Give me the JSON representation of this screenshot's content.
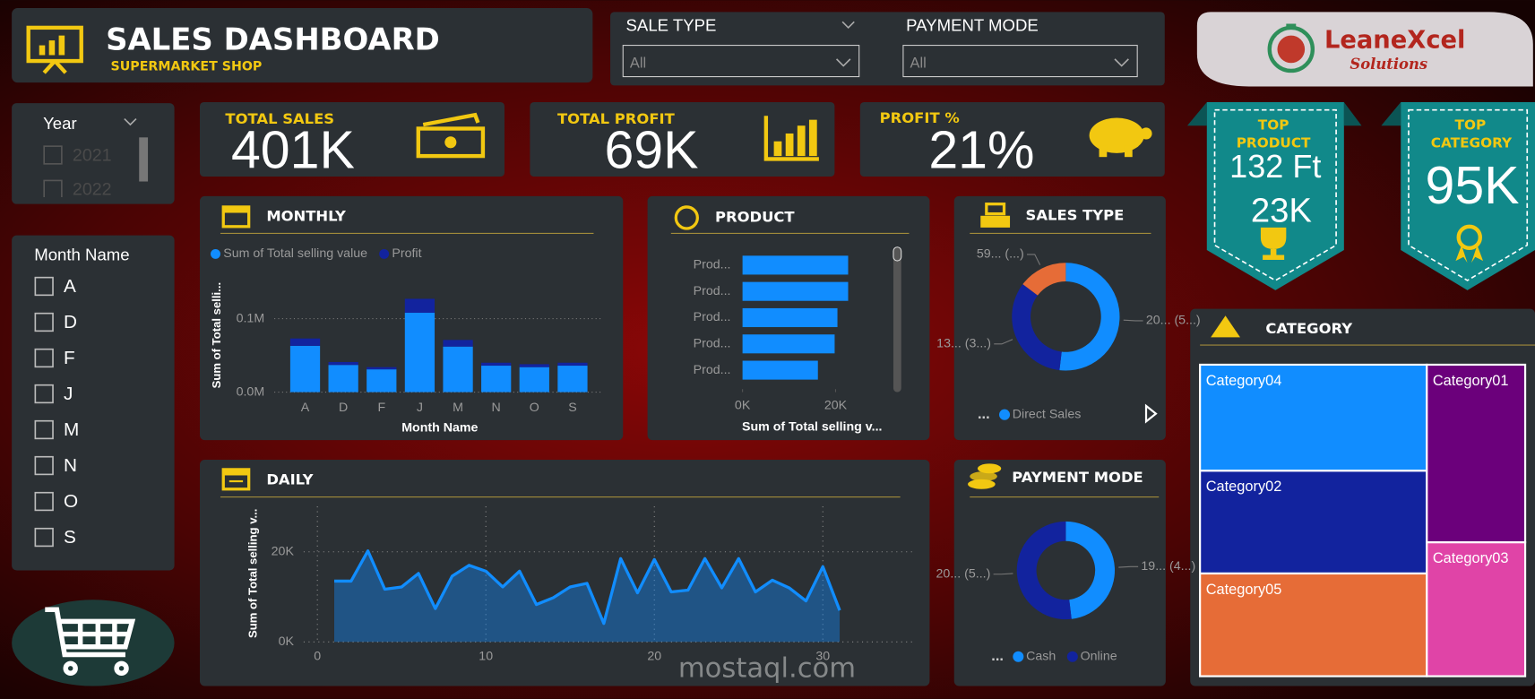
{
  "header": {
    "title": "SALES DASHBOARD",
    "subtitle": "SUPERMARKET SHOP"
  },
  "filters": [
    {
      "label": "SALE TYPE",
      "value": "All"
    },
    {
      "label": "PAYMENT MODE",
      "value": "All"
    }
  ],
  "logo": {
    "name": "LeaneXcel",
    "tagline": "Solutions"
  },
  "year_slicer": {
    "title": "Year",
    "items": [
      "2021",
      "2022"
    ]
  },
  "month_slicer": {
    "title": "Month Name",
    "items": [
      "A",
      "D",
      "F",
      "J",
      "M",
      "N",
      "O",
      "S"
    ]
  },
  "kpis": [
    {
      "label": "TOTAL SALES",
      "value": "401K"
    },
    {
      "label": "TOTAL PROFIT",
      "value": "69K"
    },
    {
      "label": "PROFIT %",
      "value": "21%"
    }
  ],
  "top_cards": [
    {
      "label_lines": [
        "TOP",
        "PRODUCT"
      ],
      "name": "132 Ft",
      "value": "23K"
    },
    {
      "label_lines": [
        "TOP",
        "CATEGORY"
      ],
      "value": "95K"
    }
  ],
  "watermark": "mostaql.com",
  "chart_data": [
    {
      "type": "bar",
      "stacked": true,
      "title": "MONTHLY",
      "categories": [
        "A",
        "D",
        "F",
        "J",
        "M",
        "N",
        "O",
        "S"
      ],
      "series": [
        {
          "name": "Sum of Total selling value",
          "color": "#118dff",
          "values": [
            63000,
            37000,
            31000,
            108000,
            62000,
            36000,
            34000,
            36000
          ]
        },
        {
          "name": "Profit",
          "color": "#12239e",
          "values": [
            10000,
            4000,
            3000,
            19000,
            9000,
            4000,
            4000,
            4000
          ]
        }
      ],
      "ylim": [
        0,
        140000
      ],
      "yticks": [
        {
          "value": 0,
          "label": "0.0M"
        },
        {
          "value": 100000,
          "label": "0.1M"
        }
      ],
      "ylabel": "Sum of Total selli...",
      "xlabel": "Month Name",
      "grid": true
    },
    {
      "type": "barh",
      "title": "PRODUCT",
      "categories": [
        "Prod...",
        "Prod...",
        "Prod...",
        "Prod...",
        "Prod..."
      ],
      "values": [
        22700,
        22700,
        20400,
        19800,
        16200
      ],
      "color": "#118dff",
      "xlim": [
        0,
        32000
      ],
      "xticks": [
        {
          "value": 0,
          "label": "0K"
        },
        {
          "value": 20000,
          "label": "20K"
        }
      ],
      "xlabel": "Sum of Total selling v..."
    },
    {
      "type": "donut",
      "title": "SALES TYPE",
      "categories": [
        "Direct Sales",
        null,
        null
      ],
      "values": [
        208000,
        134000,
        59000
      ],
      "value_labels": [
        "20... (5...)",
        "13... (3...)",
        "59... (...)"
      ],
      "colors": [
        "#118dff",
        "#12239e",
        "#e66c37"
      ],
      "legend_overflow": "..."
    },
    {
      "type": "area",
      "title": "DAILY",
      "x": [
        1,
        2,
        3,
        4,
        5,
        6,
        7,
        8,
        9,
        10,
        11,
        12,
        13,
        14,
        15,
        16,
        17,
        18,
        19,
        20,
        21,
        22,
        23,
        24,
        25,
        26,
        27,
        28,
        29,
        30,
        31
      ],
      "values": [
        13500,
        13500,
        20200,
        11700,
        12200,
        15200,
        7400,
        14600,
        17000,
        15700,
        12200,
        15700,
        8300,
        9800,
        12200,
        13000,
        4100,
        18500,
        10900,
        18300,
        11100,
        11500,
        18500,
        12000,
        18500,
        11100,
        13700,
        12000,
        9100,
        16700,
        7000
      ],
      "color": "#118dff",
      "xlim": [
        0,
        35
      ],
      "xticks": [
        0,
        10,
        20,
        30
      ],
      "ylim": [
        0,
        29000
      ],
      "yticks": [
        {
          "value": 0,
          "label": "0K"
        },
        {
          "value": 20000,
          "label": "20K"
        }
      ],
      "ylabel": "Sum of Total selling v...",
      "grid": true
    },
    {
      "type": "donut",
      "title": "PAYMENT MODE",
      "categories": [
        "Cash",
        "Online"
      ],
      "values": [
        193000,
        208000
      ],
      "value_labels": [
        "19... (4...)",
        "20... (5...)"
      ],
      "colors": [
        "#118dff",
        "#12239e"
      ],
      "legend_overflow": "..."
    },
    {
      "type": "treemap",
      "title": "CATEGORY",
      "categories": [
        "Category04",
        "Category02",
        "Category05",
        "Category01",
        "Category03"
      ],
      "values": [
        95000,
        92000,
        92000,
        69000,
        52000
      ],
      "colors": [
        "#118dff",
        "#12239e",
        "#e66c37",
        "#6b007b",
        "#e044a7"
      ]
    }
  ]
}
